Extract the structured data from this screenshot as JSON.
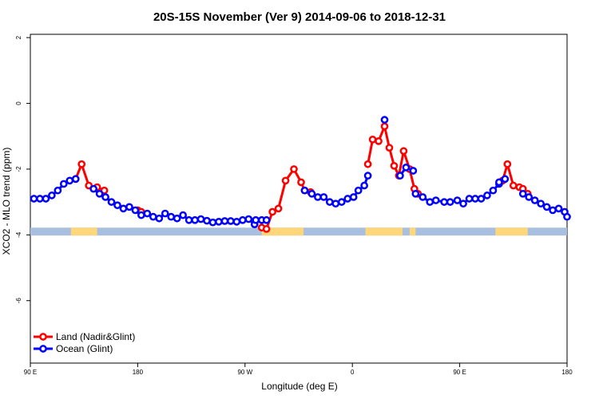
{
  "chart_data": {
    "type": "line",
    "title": "20S-15S November (Ver 9)   2014-09-06 to 2018-12-31",
    "xlabel": "Longitude (deg E)",
    "ylabel": "XCO2 - MLO trend (ppm)",
    "x_ticks": [
      "90 E",
      "180",
      "90 W",
      "0",
      "90 E",
      "180"
    ],
    "y_ticks": [
      "2",
      "0",
      "-2",
      "-4",
      "-6"
    ],
    "x_tick_positions": [
      90,
      180,
      270,
      360,
      450,
      540
    ],
    "y_tick_values": [
      2,
      0,
      -2,
      -4,
      -6
    ],
    "xlim": [
      90,
      540
    ],
    "ylim": [
      -7.9,
      2.1
    ],
    "legend_position": "bottom-left",
    "colors": {
      "land": "#ff0000",
      "ocean": "#0000ff",
      "land_mask": "#ffd77a",
      "ocean_mask": "#a9bfdf"
    },
    "series": [
      {
        "name": "Land (Nadir&Glint)",
        "color": "#ff0000",
        "segments": [
          {
            "x": [
              128,
              133,
              139,
              146,
              152
            ],
            "y": [
              -2.3,
              -1.85,
              -2.5,
              -2.55,
              -2.65
            ]
          },
          {
            "x": [
              180,
              183
            ],
            "y": [
              -3.25,
              -3.3
            ]
          },
          {
            "x": [
              284,
              288,
              293,
              298,
              304,
              311,
              317,
              320,
              325
            ],
            "y": [
              -3.78,
              -3.82,
              -3.3,
              -3.2,
              -2.35,
              -2.0,
              -2.4,
              -2.65,
              -2.7
            ]
          },
          {
            "x": [
              373,
              377,
              382,
              387,
              391,
              395,
              399,
              403,
              408,
              412,
              415
            ],
            "y": [
              -1.85,
              -1.1,
              -1.15,
              -0.7,
              -1.35,
              -1.9,
              -2.2,
              -1.45,
              -2.0,
              -2.6,
              -2.75
            ]
          },
          {
            "x": [
              486,
              490,
              495,
              500,
              503,
              507
            ],
            "y": [
              -2.35,
              -1.85,
              -2.5,
              -2.55,
              -2.6,
              -2.75
            ]
          }
        ]
      },
      {
        "name": "Ocean (Glint)",
        "color": "#0000ff",
        "segments": [
          {
            "x": [
              93,
              98,
              103,
              108,
              113,
              118,
              123,
              128
            ],
            "y": [
              -2.9,
              -2.9,
              -2.9,
              -2.8,
              -2.65,
              -2.45,
              -2.35,
              -2.3
            ]
          },
          {
            "x": [
              143,
              148,
              153,
              158,
              163,
              168,
              173,
              178,
              183,
              188,
              193,
              198,
              203,
              208,
              213,
              218,
              223,
              228,
              233,
              238,
              243,
              248,
              253,
              258,
              263,
              268,
              273,
              278
            ],
            "y": [
              -2.6,
              -2.75,
              -2.85,
              -3.0,
              -3.1,
              -3.2,
              -3.15,
              -3.25,
              -3.4,
              -3.35,
              -3.45,
              -3.5,
              -3.35,
              -3.45,
              -3.5,
              -3.4,
              -3.55,
              -3.55,
              -3.52,
              -3.57,
              -3.62,
              -3.6,
              -3.58,
              -3.58,
              -3.6,
              -3.55,
              -3.52,
              -3.68
            ]
          },
          {
            "x": [
              279,
              284,
              288
            ],
            "y": [
              -3.55,
              -3.55,
              -3.55
            ]
          },
          {
            "x": [
              320,
              326,
              331,
              336,
              341,
              346,
              351,
              356,
              361,
              365,
              370,
              373
            ],
            "y": [
              -2.65,
              -2.75,
              -2.85,
              -2.85,
              -3.0,
              -3.05,
              -3.0,
              -2.9,
              -2.85,
              -2.65,
              -2.5,
              -2.2
            ]
          },
          {
            "x": [
              387
            ],
            "y": [
              -0.5
            ]
          },
          {
            "x": [
              400,
              405,
              411
            ],
            "y": [
              -2.2,
              -1.95,
              -2.05
            ]
          },
          {
            "x": [
              413,
              419,
              425,
              430,
              437,
              442,
              448,
              453,
              458,
              463,
              468,
              473,
              478,
              483
            ],
            "y": [
              -2.75,
              -2.85,
              -3.0,
              -2.95,
              -3.0,
              -3.0,
              -2.95,
              -3.05,
              -2.9,
              -2.9,
              -2.9,
              -2.8,
              -2.65,
              -2.45
            ]
          },
          {
            "x": [
              483,
              488
            ],
            "y": [
              -2.4,
              -2.3
            ]
          },
          {
            "x": [
              503,
              508,
              513,
              518,
              523,
              528,
              533,
              538,
              540
            ],
            "y": [
              -2.75,
              -2.85,
              -2.95,
              -3.05,
              -3.15,
              -3.25,
              -3.2,
              -3.3,
              -3.45
            ]
          }
        ]
      }
    ],
    "land_mask_ranges": [
      [
        124,
        146
      ],
      [
        284,
        319
      ],
      [
        371,
        402
      ],
      [
        408,
        413
      ],
      [
        480,
        507
      ]
    ]
  }
}
